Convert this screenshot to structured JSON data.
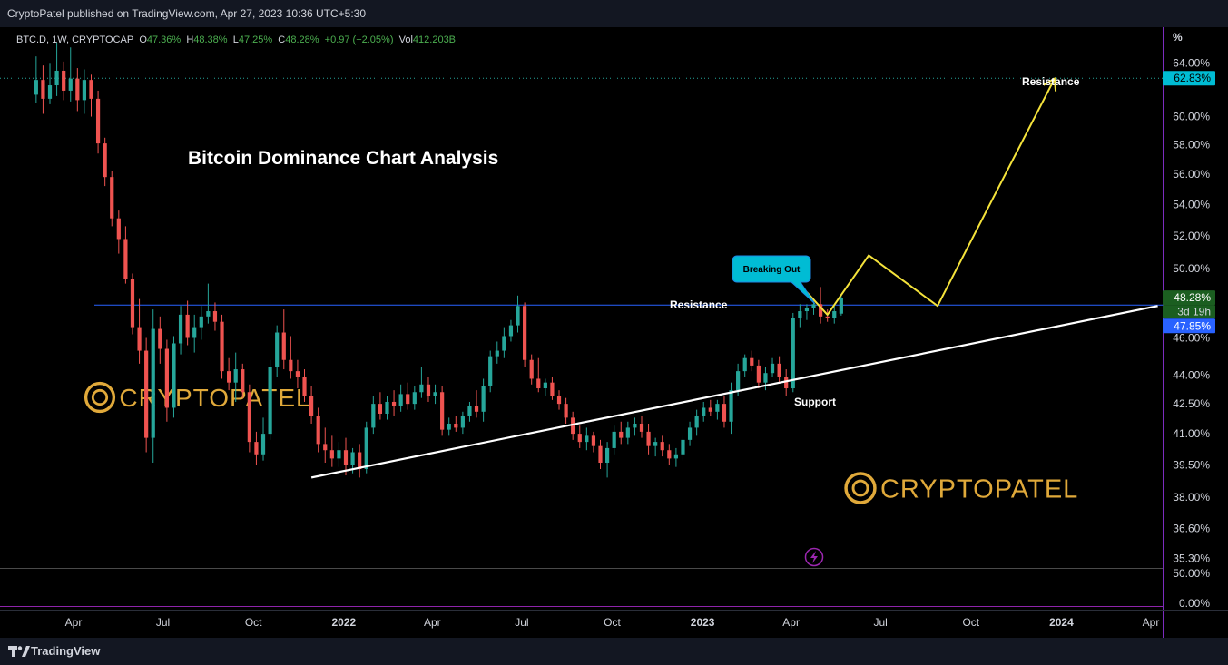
{
  "header": {
    "publisher_line": "CryptoPatel published on TradingView.com, Apr 27, 2023 10:36 UTC+5:30"
  },
  "legend": {
    "symbol": "BTC.D, 1W, CRYPTOCAP",
    "o_label": "O",
    "o_value": "47.36%",
    "h_label": "H",
    "h_value": "48.38%",
    "l_label": "L",
    "l_value": "47.25%",
    "c_label": "C",
    "c_value": "48.28%",
    "change": "+0.97 (+2.05%)",
    "vol_label": "Vol",
    "vol_value": "412.203B"
  },
  "footer": {
    "brand": "TradingView"
  },
  "colors": {
    "up": "#26a69a",
    "down": "#ef5350",
    "background": "#000000",
    "yellow": "#f5e33b",
    "blue": "#2962ff",
    "watermark": "#e0a93a"
  },
  "chart_data": {
    "type": "candlestick",
    "title": "Bitcoin Dominance Chart Analysis",
    "symbol": "BTC.D",
    "interval": "1W",
    "y_unit_label": "%",
    "x_ticks": [
      "Apr",
      "Jul",
      "Oct",
      "2022",
      "Apr",
      "Jul",
      "Oct",
      "2023",
      "Apr",
      "Jul",
      "Oct",
      "2024",
      "Apr"
    ],
    "y_ticks": [
      "64.00%",
      "60.00%",
      "58.00%",
      "56.00%",
      "54.00%",
      "52.00%",
      "50.00%",
      "46.00%",
      "44.00%",
      "42.50%",
      "41.00%",
      "39.50%",
      "38.00%",
      "36.60%",
      "35.30%"
    ],
    "y_range": [
      34.9,
      66.8
    ],
    "log_scale": true,
    "price_labels": {
      "last": "48.28%",
      "countdown": "3d 19h",
      "line_value": "47.85%",
      "target": "62.83%"
    },
    "indicator_pane": {
      "top_label": "50.00%",
      "bottom_label": "0.00%"
    },
    "annotations": {
      "resistance_top": "Resistance",
      "resistance_mid": "Resistance",
      "support": "Support",
      "callout": "Breaking Out",
      "watermark": "CRYPTOPATEL"
    },
    "horizontal_resistance": 47.85,
    "support_line": {
      "x": [
        "2021-11-29",
        "2024-04-08"
      ],
      "y": [
        38.9,
        47.8
      ]
    },
    "projection": {
      "x": [
        "2023-04-17",
        "2023-05-08",
        "2023-06-19",
        "2023-08-28",
        "2023-12-25"
      ],
      "y": [
        48.6,
        47.3,
        50.8,
        47.8,
        62.8
      ]
    },
    "candles": [
      {
        "t": "2021-02-22",
        "o": 61.6,
        "h": 64.5,
        "l": 61.0,
        "c": 62.7
      },
      {
        "t": "2021-03-01",
        "o": 62.7,
        "h": 63.8,
        "l": 60.2,
        "c": 61.3
      },
      {
        "t": "2021-03-08",
        "o": 61.3,
        "h": 64.0,
        "l": 60.9,
        "c": 62.3
      },
      {
        "t": "2021-03-15",
        "o": 62.3,
        "h": 65.6,
        "l": 61.5,
        "c": 63.4
      },
      {
        "t": "2021-03-22",
        "o": 63.4,
        "h": 64.1,
        "l": 61.2,
        "c": 61.9
      },
      {
        "t": "2021-03-29",
        "o": 61.9,
        "h": 65.2,
        "l": 61.1,
        "c": 62.8
      },
      {
        "t": "2021-04-05",
        "o": 62.8,
        "h": 63.6,
        "l": 60.4,
        "c": 61.2
      },
      {
        "t": "2021-04-12",
        "o": 61.2,
        "h": 63.5,
        "l": 60.2,
        "c": 62.7
      },
      {
        "t": "2021-04-19",
        "o": 62.7,
        "h": 63.1,
        "l": 60.0,
        "c": 61.3
      },
      {
        "t": "2021-04-26",
        "o": 61.3,
        "h": 61.9,
        "l": 57.4,
        "c": 58.1
      },
      {
        "t": "2021-05-03",
        "o": 58.1,
        "h": 58.5,
        "l": 55.2,
        "c": 55.8
      },
      {
        "t": "2021-05-10",
        "o": 55.8,
        "h": 56.2,
        "l": 52.6,
        "c": 53.1
      },
      {
        "t": "2021-05-17",
        "o": 53.1,
        "h": 53.6,
        "l": 50.9,
        "c": 51.8
      },
      {
        "t": "2021-05-24",
        "o": 51.8,
        "h": 52.6,
        "l": 49.1,
        "c": 49.4
      },
      {
        "t": "2021-05-31",
        "o": 49.4,
        "h": 49.7,
        "l": 46.2,
        "c": 46.6
      },
      {
        "t": "2021-06-07",
        "o": 46.6,
        "h": 48.2,
        "l": 44.6,
        "c": 45.3
      },
      {
        "t": "2021-06-14",
        "o": 45.3,
        "h": 46.0,
        "l": 40.1,
        "c": 40.8
      },
      {
        "t": "2021-06-21",
        "o": 40.8,
        "h": 47.6,
        "l": 39.6,
        "c": 46.5
      },
      {
        "t": "2021-06-28",
        "o": 46.5,
        "h": 47.2,
        "l": 44.6,
        "c": 45.4
      },
      {
        "t": "2021-07-05",
        "o": 45.4,
        "h": 45.9,
        "l": 41.6,
        "c": 42.3
      },
      {
        "t": "2021-07-12",
        "o": 42.3,
        "h": 46.1,
        "l": 41.8,
        "c": 45.7
      },
      {
        "t": "2021-07-19",
        "o": 45.7,
        "h": 47.8,
        "l": 45.1,
        "c": 47.3
      },
      {
        "t": "2021-07-26",
        "o": 47.3,
        "h": 48.1,
        "l": 45.6,
        "c": 46.0
      },
      {
        "t": "2021-08-02",
        "o": 46.0,
        "h": 47.3,
        "l": 45.2,
        "c": 46.6
      },
      {
        "t": "2021-08-09",
        "o": 46.6,
        "h": 47.8,
        "l": 45.9,
        "c": 47.2
      },
      {
        "t": "2021-08-16",
        "o": 47.2,
        "h": 49.1,
        "l": 46.8,
        "c": 47.5
      },
      {
        "t": "2021-08-23",
        "o": 47.5,
        "h": 48.0,
        "l": 46.4,
        "c": 46.9
      },
      {
        "t": "2021-08-30",
        "o": 46.9,
        "h": 47.3,
        "l": 43.8,
        "c": 44.2
      },
      {
        "t": "2021-09-06",
        "o": 44.2,
        "h": 44.9,
        "l": 43.2,
        "c": 43.6
      },
      {
        "t": "2021-09-13",
        "o": 43.6,
        "h": 45.2,
        "l": 42.6,
        "c": 44.3
      },
      {
        "t": "2021-09-20",
        "o": 44.3,
        "h": 44.6,
        "l": 42.8,
        "c": 43.1
      },
      {
        "t": "2021-09-27",
        "o": 43.1,
        "h": 43.5,
        "l": 40.1,
        "c": 40.6
      },
      {
        "t": "2021-10-04",
        "o": 40.6,
        "h": 41.1,
        "l": 39.5,
        "c": 40.0
      },
      {
        "t": "2021-10-11",
        "o": 40.0,
        "h": 41.8,
        "l": 39.7,
        "c": 41.0
      },
      {
        "t": "2021-10-18",
        "o": 41.0,
        "h": 44.8,
        "l": 40.7,
        "c": 44.4
      },
      {
        "t": "2021-10-25",
        "o": 44.4,
        "h": 46.7,
        "l": 43.9,
        "c": 46.3
      },
      {
        "t": "2021-11-01",
        "o": 46.3,
        "h": 47.6,
        "l": 44.3,
        "c": 44.8
      },
      {
        "t": "2021-11-08",
        "o": 44.8,
        "h": 46.1,
        "l": 43.8,
        "c": 44.2
      },
      {
        "t": "2021-11-15",
        "o": 44.2,
        "h": 44.8,
        "l": 43.3,
        "c": 43.9
      },
      {
        "t": "2021-11-22",
        "o": 43.9,
        "h": 44.3,
        "l": 42.6,
        "c": 42.9
      },
      {
        "t": "2021-11-29",
        "o": 42.9,
        "h": 43.4,
        "l": 41.5,
        "c": 41.9
      },
      {
        "t": "2021-12-06",
        "o": 41.9,
        "h": 42.3,
        "l": 40.1,
        "c": 40.5
      },
      {
        "t": "2021-12-13",
        "o": 40.5,
        "h": 41.3,
        "l": 39.6,
        "c": 40.2
      },
      {
        "t": "2021-12-20",
        "o": 40.2,
        "h": 40.9,
        "l": 39.4,
        "c": 39.8
      },
      {
        "t": "2021-12-27",
        "o": 39.8,
        "h": 40.6,
        "l": 39.4,
        "c": 40.2
      },
      {
        "t": "2022-01-03",
        "o": 40.2,
        "h": 40.8,
        "l": 39.0,
        "c": 39.5
      },
      {
        "t": "2022-01-10",
        "o": 39.5,
        "h": 40.3,
        "l": 39.1,
        "c": 40.1
      },
      {
        "t": "2022-01-17",
        "o": 40.1,
        "h": 40.5,
        "l": 38.9,
        "c": 39.3
      },
      {
        "t": "2022-01-24",
        "o": 39.3,
        "h": 41.6,
        "l": 39.1,
        "c": 41.3
      },
      {
        "t": "2022-01-31",
        "o": 41.3,
        "h": 42.9,
        "l": 41.0,
        "c": 42.5
      },
      {
        "t": "2022-02-07",
        "o": 42.5,
        "h": 43.1,
        "l": 41.7,
        "c": 42.0
      },
      {
        "t": "2022-02-14",
        "o": 42.0,
        "h": 42.9,
        "l": 41.7,
        "c": 42.6
      },
      {
        "t": "2022-02-21",
        "o": 42.6,
        "h": 43.2,
        "l": 41.9,
        "c": 42.4
      },
      {
        "t": "2022-02-28",
        "o": 42.4,
        "h": 43.5,
        "l": 42.1,
        "c": 43.0
      },
      {
        "t": "2022-03-07",
        "o": 43.0,
        "h": 43.6,
        "l": 42.2,
        "c": 42.5
      },
      {
        "t": "2022-03-14",
        "o": 42.5,
        "h": 43.4,
        "l": 42.2,
        "c": 43.1
      },
      {
        "t": "2022-03-21",
        "o": 43.1,
        "h": 44.4,
        "l": 42.8,
        "c": 43.5
      },
      {
        "t": "2022-03-28",
        "o": 43.5,
        "h": 43.9,
        "l": 42.6,
        "c": 42.9
      },
      {
        "t": "2022-04-04",
        "o": 42.9,
        "h": 43.5,
        "l": 42.5,
        "c": 43.1
      },
      {
        "t": "2022-04-11",
        "o": 43.1,
        "h": 43.4,
        "l": 40.9,
        "c": 41.2
      },
      {
        "t": "2022-04-18",
        "o": 41.2,
        "h": 41.8,
        "l": 40.9,
        "c": 41.5
      },
      {
        "t": "2022-04-25",
        "o": 41.5,
        "h": 41.9,
        "l": 41.1,
        "c": 41.3
      },
      {
        "t": "2022-05-02",
        "o": 41.3,
        "h": 42.1,
        "l": 41.0,
        "c": 41.9
      },
      {
        "t": "2022-05-09",
        "o": 41.9,
        "h": 42.6,
        "l": 41.6,
        "c": 42.4
      },
      {
        "t": "2022-05-16",
        "o": 42.4,
        "h": 43.2,
        "l": 41.8,
        "c": 42.1
      },
      {
        "t": "2022-05-23",
        "o": 42.1,
        "h": 43.8,
        "l": 41.6,
        "c": 43.4
      },
      {
        "t": "2022-05-30",
        "o": 43.4,
        "h": 45.3,
        "l": 43.1,
        "c": 45.0
      },
      {
        "t": "2022-06-06",
        "o": 45.0,
        "h": 45.8,
        "l": 44.6,
        "c": 45.3
      },
      {
        "t": "2022-06-13",
        "o": 45.3,
        "h": 46.6,
        "l": 44.9,
        "c": 46.1
      },
      {
        "t": "2022-06-20",
        "o": 46.1,
        "h": 47.0,
        "l": 45.8,
        "c": 46.7
      },
      {
        "t": "2022-06-27",
        "o": 46.7,
        "h": 48.4,
        "l": 46.3,
        "c": 47.8
      },
      {
        "t": "2022-07-04",
        "o": 47.8,
        "h": 48.0,
        "l": 44.4,
        "c": 44.8
      },
      {
        "t": "2022-07-11",
        "o": 44.8,
        "h": 45.1,
        "l": 43.5,
        "c": 43.8
      },
      {
        "t": "2022-07-18",
        "o": 43.8,
        "h": 44.9,
        "l": 43.1,
        "c": 43.3
      },
      {
        "t": "2022-07-25",
        "o": 43.3,
        "h": 43.8,
        "l": 42.9,
        "c": 43.6
      },
      {
        "t": "2022-08-01",
        "o": 43.6,
        "h": 43.9,
        "l": 42.7,
        "c": 42.9
      },
      {
        "t": "2022-08-08",
        "o": 42.9,
        "h": 43.2,
        "l": 42.2,
        "c": 42.5
      },
      {
        "t": "2022-08-15",
        "o": 42.5,
        "h": 42.8,
        "l": 41.5,
        "c": 41.8
      },
      {
        "t": "2022-08-22",
        "o": 41.8,
        "h": 42.1,
        "l": 40.7,
        "c": 41.0
      },
      {
        "t": "2022-08-29",
        "o": 41.0,
        "h": 41.4,
        "l": 40.3,
        "c": 40.6
      },
      {
        "t": "2022-09-05",
        "o": 40.6,
        "h": 41.3,
        "l": 40.2,
        "c": 40.9
      },
      {
        "t": "2022-09-12",
        "o": 40.9,
        "h": 41.1,
        "l": 40.1,
        "c": 40.4
      },
      {
        "t": "2022-09-19",
        "o": 40.4,
        "h": 40.7,
        "l": 39.3,
        "c": 39.6
      },
      {
        "t": "2022-09-26",
        "o": 39.6,
        "h": 40.6,
        "l": 38.9,
        "c": 40.3
      },
      {
        "t": "2022-10-03",
        "o": 40.3,
        "h": 41.4,
        "l": 40.0,
        "c": 41.1
      },
      {
        "t": "2022-10-10",
        "o": 41.1,
        "h": 41.6,
        "l": 40.5,
        "c": 40.8
      },
      {
        "t": "2022-10-17",
        "o": 40.8,
        "h": 41.6,
        "l": 40.5,
        "c": 41.3
      },
      {
        "t": "2022-10-24",
        "o": 41.3,
        "h": 41.8,
        "l": 40.9,
        "c": 41.5
      },
      {
        "t": "2022-10-31",
        "o": 41.5,
        "h": 41.9,
        "l": 40.8,
        "c": 41.1
      },
      {
        "t": "2022-11-07",
        "o": 41.1,
        "h": 41.5,
        "l": 40.0,
        "c": 40.4
      },
      {
        "t": "2022-11-14",
        "o": 40.4,
        "h": 40.8,
        "l": 39.9,
        "c": 40.6
      },
      {
        "t": "2022-11-21",
        "o": 40.6,
        "h": 40.9,
        "l": 39.9,
        "c": 40.2
      },
      {
        "t": "2022-11-28",
        "o": 40.2,
        "h": 40.5,
        "l": 39.5,
        "c": 39.8
      },
      {
        "t": "2022-12-05",
        "o": 39.8,
        "h": 40.3,
        "l": 39.4,
        "c": 40.0
      },
      {
        "t": "2022-12-12",
        "o": 40.0,
        "h": 40.9,
        "l": 39.7,
        "c": 40.7
      },
      {
        "t": "2022-12-19",
        "o": 40.7,
        "h": 41.6,
        "l": 40.4,
        "c": 41.3
      },
      {
        "t": "2022-12-26",
        "o": 41.3,
        "h": 42.2,
        "l": 40.9,
        "c": 41.9
      },
      {
        "t": "2023-01-02",
        "o": 41.9,
        "h": 42.6,
        "l": 41.6,
        "c": 42.3
      },
      {
        "t": "2023-01-09",
        "o": 42.3,
        "h": 42.7,
        "l": 41.9,
        "c": 42.1
      },
      {
        "t": "2023-01-16",
        "o": 42.1,
        "h": 42.7,
        "l": 41.7,
        "c": 42.5
      },
      {
        "t": "2023-01-23",
        "o": 42.5,
        "h": 42.9,
        "l": 41.3,
        "c": 41.6
      },
      {
        "t": "2023-01-30",
        "o": 41.6,
        "h": 43.6,
        "l": 41.0,
        "c": 43.2
      },
      {
        "t": "2023-02-06",
        "o": 43.2,
        "h": 44.6,
        "l": 42.9,
        "c": 44.2
      },
      {
        "t": "2023-02-13",
        "o": 44.2,
        "h": 45.1,
        "l": 43.9,
        "c": 44.9
      },
      {
        "t": "2023-02-20",
        "o": 44.9,
        "h": 45.3,
        "l": 44.2,
        "c": 44.5
      },
      {
        "t": "2023-02-27",
        "o": 44.5,
        "h": 44.8,
        "l": 43.3,
        "c": 43.6
      },
      {
        "t": "2023-03-06",
        "o": 43.6,
        "h": 44.4,
        "l": 43.2,
        "c": 44.1
      },
      {
        "t": "2023-03-13",
        "o": 44.1,
        "h": 44.9,
        "l": 43.9,
        "c": 44.6
      },
      {
        "t": "2023-03-20",
        "o": 44.6,
        "h": 45.0,
        "l": 43.6,
        "c": 43.9
      },
      {
        "t": "2023-03-27",
        "o": 43.9,
        "h": 44.3,
        "l": 42.9,
        "c": 43.3
      },
      {
        "t": "2023-04-03",
        "o": 43.3,
        "h": 47.4,
        "l": 43.1,
        "c": 47.1
      },
      {
        "t": "2023-04-10",
        "o": 47.1,
        "h": 47.9,
        "l": 46.6,
        "c": 47.5
      },
      {
        "t": "2023-04-17",
        "o": 47.5,
        "h": 47.9,
        "l": 47.0,
        "c": 47.7
      },
      {
        "t": "2023-04-24",
        "o": 47.7,
        "h": 48.1,
        "l": 47.3,
        "c": 47.9
      },
      {
        "t": "2023-05-01",
        "o": 47.9,
        "h": 48.9,
        "l": 46.8,
        "c": 47.2
      },
      {
        "t": "2023-05-08",
        "o": 47.2,
        "h": 47.6,
        "l": 46.9,
        "c": 47.1
      },
      {
        "t": "2023-05-15",
        "o": 47.1,
        "h": 47.8,
        "l": 46.8,
        "c": 47.5
      },
      {
        "t": "2023-05-22",
        "o": 47.36,
        "h": 48.38,
        "l": 47.25,
        "c": 48.28
      }
    ]
  }
}
